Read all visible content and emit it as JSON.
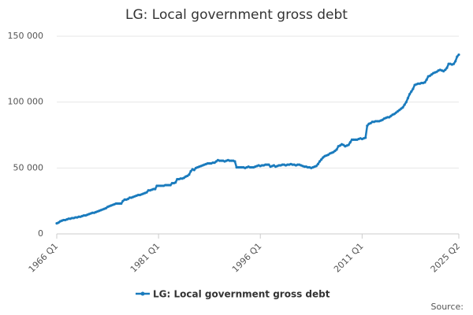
{
  "chart_data": {
    "type": "line",
    "title": "LG: Local government gross debt",
    "source": "Source:",
    "categories": [
      "1966 Q1",
      null,
      null,
      null,
      null,
      null,
      null,
      null,
      null,
      null,
      null,
      null,
      null,
      null,
      null,
      null,
      null,
      null,
      null,
      null,
      null,
      null,
      null,
      null,
      null,
      null,
      null,
      null,
      null,
      null,
      null,
      null,
      null,
      null,
      null,
      null,
      null,
      null,
      null,
      null,
      null,
      null,
      null,
      null,
      null,
      null,
      null,
      null,
      null,
      null,
      null,
      null,
      null,
      null,
      null,
      null,
      null,
      null,
      null,
      null,
      "1981 Q1",
      null,
      null,
      null,
      null,
      null,
      null,
      null,
      null,
      null,
      null,
      null,
      null,
      null,
      null,
      null,
      null,
      null,
      null,
      null,
      null,
      null,
      null,
      null,
      null,
      null,
      null,
      null,
      null,
      null,
      null,
      null,
      null,
      null,
      null,
      null,
      null,
      null,
      null,
      null,
      null,
      null,
      null,
      null,
      null,
      null,
      null,
      null,
      null,
      null,
      null,
      null,
      null,
      null,
      null,
      null,
      null,
      null,
      null,
      null,
      "1996 Q1",
      null,
      null,
      null,
      null,
      null,
      null,
      null,
      null,
      null,
      null,
      null,
      null,
      null,
      null,
      null,
      null,
      null,
      null,
      null,
      null,
      null,
      null,
      null,
      null,
      null,
      null,
      null,
      null,
      null,
      null,
      null,
      null,
      null,
      null,
      null,
      null,
      null,
      null,
      null,
      null,
      null,
      null,
      null,
      null,
      null,
      null,
      null,
      null,
      null,
      null,
      null,
      null,
      null,
      null,
      null,
      null,
      null,
      null,
      null,
      "2011 Q1",
      null,
      null,
      null,
      null,
      null,
      null,
      null,
      null,
      null,
      null,
      null,
      null,
      null,
      null,
      null,
      null,
      null,
      null,
      null,
      null,
      null,
      null,
      null,
      null,
      null,
      null,
      null,
      null,
      null,
      null,
      null,
      null,
      null,
      null,
      null,
      null,
      null,
      null,
      null,
      null,
      null,
      null,
      null,
      null,
      null,
      null,
      null,
      null,
      null,
      null,
      null,
      null,
      null,
      null,
      null,
      null,
      "2025 Q2"
    ],
    "series": [
      {
        "name": "LG: Local government gross debt",
        "color": "#1a7bbd",
        "values": [
          8000,
          8500,
          9500,
          10000,
          10500,
          10500,
          11000,
          11500,
          11500,
          12000,
          12000,
          12500,
          12500,
          13000,
          13000,
          13500,
          14000,
          14000,
          14500,
          15000,
          15500,
          16000,
          16000,
          16500,
          17000,
          17500,
          18000,
          18500,
          19000,
          19500,
          20500,
          21000,
          21500,
          22000,
          22500,
          23000,
          23000,
          23000,
          23000,
          25000,
          26000,
          26000,
          26500,
          27500,
          27500,
          28000,
          28500,
          29000,
          29500,
          29500,
          30000,
          30500,
          31000,
          31500,
          33000,
          33000,
          33500,
          34000,
          34000,
          36500,
          36500,
          36500,
          36500,
          36500,
          37000,
          37000,
          37000,
          37000,
          38500,
          38500,
          39000,
          41500,
          41500,
          42000,
          42000,
          42500,
          43500,
          44000,
          45000,
          47500,
          49000,
          48500,
          50000,
          50500,
          51000,
          51500,
          52000,
          52500,
          53000,
          53500,
          53500,
          53500,
          54000,
          54000,
          55000,
          56000,
          55500,
          55500,
          55500,
          55000,
          55500,
          56000,
          55500,
          55500,
          55500,
          55000,
          50500,
          50500,
          50500,
          50500,
          50500,
          50000,
          50500,
          51000,
          50500,
          50500,
          50500,
          51000,
          51500,
          52000,
          51500,
          52000,
          52000,
          52500,
          52500,
          52500,
          51000,
          51500,
          52000,
          51000,
          51500,
          52000,
          52000,
          52500,
          52500,
          52000,
          52500,
          52500,
          53000,
          52500,
          52500,
          52000,
          52500,
          52500,
          52000,
          51500,
          51000,
          51000,
          50500,
          50500,
          50000,
          50500,
          51000,
          51500,
          53000,
          55000,
          56500,
          58000,
          59000,
          59500,
          60000,
          61000,
          61500,
          62000,
          63000,
          64000,
          66500,
          67000,
          68000,
          67500,
          66500,
          67000,
          67500,
          69500,
          71500,
          71500,
          71500,
          71500,
          72000,
          72500,
          72000,
          72500,
          73000,
          82000,
          83500,
          84000,
          85000,
          85000,
          85500,
          85500,
          85500,
          86000,
          86500,
          87500,
          88000,
          88500,
          88500,
          89500,
          90500,
          91000,
          92000,
          93000,
          94000,
          95000,
          96000,
          98000,
          100000,
          103000,
          106000,
          108000,
          110000,
          113000,
          113500,
          114000,
          114000,
          114500,
          114500,
          115000,
          117000,
          119500,
          120000,
          121000,
          122000,
          122500,
          123000,
          124000,
          124500,
          124000,
          123500,
          124500,
          126000,
          129000,
          129000,
          128500,
          129000,
          131000,
          134500,
          136000
        ]
      }
    ],
    "ylim": [
      0,
      150000
    ],
    "yticks": [
      0,
      {
        "value": 50000,
        "label": "50 000"
      },
      {
        "value": 100000,
        "label": "100 000"
      },
      {
        "value": 150000,
        "label": "150 000"
      }
    ],
    "grid": true
  }
}
